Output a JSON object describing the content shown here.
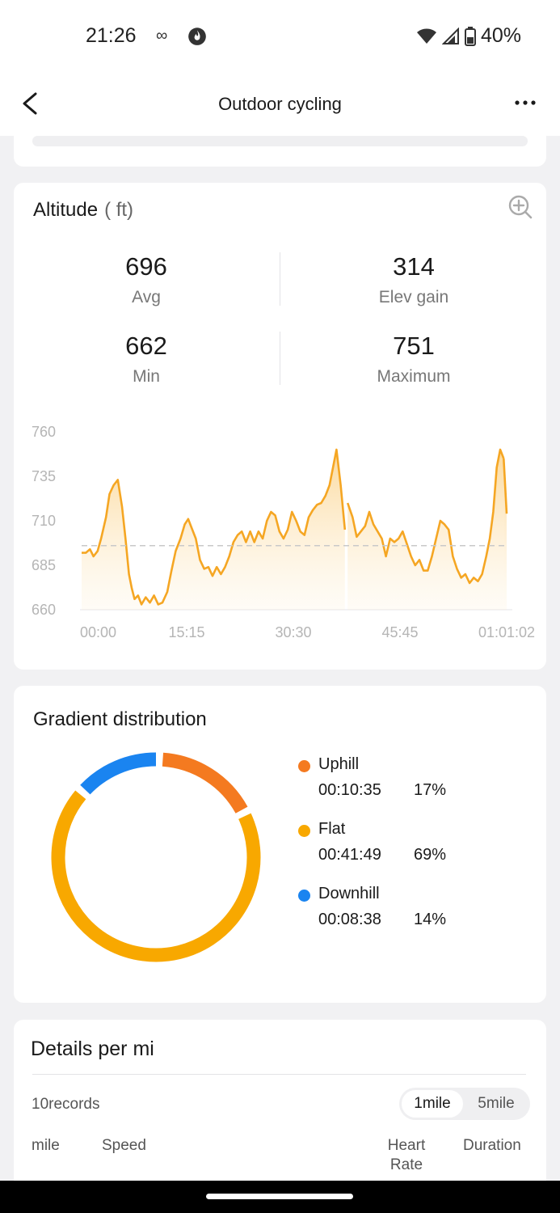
{
  "status_bar": {
    "time": "21:26",
    "battery": "40%"
  },
  "app_bar": {
    "title": "Outdoor cycling"
  },
  "altitude": {
    "title": "Altitude",
    "unit": "( ft)",
    "stats": [
      {
        "value": "696",
        "label": "Avg"
      },
      {
        "value": "314",
        "label": "Elev gain"
      },
      {
        "value": "662",
        "label": "Min"
      },
      {
        "value": "751",
        "label": "Maximum"
      }
    ]
  },
  "chart_data": {
    "type": "area",
    "y_ticks": [
      "760",
      "735",
      "710",
      "685",
      "660"
    ],
    "ylim": [
      660,
      760
    ],
    "x_ticks": [
      "00:00",
      "15:15",
      "30:30",
      "45:45",
      "01:01:02"
    ],
    "xlim_minutes": [
      0,
      61.03
    ],
    "average_line": 696,
    "color": "#f5a623",
    "segments": [
      {
        "x": [
          0,
          0.6,
          1.2,
          1.7,
          2.3,
          2.8,
          3.5,
          4.0,
          4.6,
          5.2,
          5.8,
          6.3,
          6.8,
          7.2,
          7.6,
          8.1,
          8.6,
          9.2,
          9.8,
          10.4,
          11.0,
          11.6,
          12.3,
          12.9,
          13.5,
          14.2,
          14.8,
          15.3,
          15.9,
          16.4,
          17.0,
          17.6,
          18.2,
          18.8,
          19.4,
          20.0,
          20.6,
          21.2,
          21.8,
          22.4,
          23.0,
          23.6,
          24.2,
          24.8,
          25.4,
          26.0,
          26.6,
          27.2,
          27.8,
          28.4,
          29.0,
          29.6,
          30.2,
          30.8,
          31.4,
          32.0,
          32.6,
          33.2,
          33.8,
          34.4,
          35.0,
          35.6,
          36.1,
          36.6,
          37.2,
          37.8
        ],
        "y": [
          692,
          692,
          694,
          690,
          693,
          700,
          712,
          725,
          730,
          733,
          718,
          700,
          680,
          672,
          666,
          668,
          663,
          667,
          664,
          668,
          663,
          664,
          670,
          682,
          693,
          700,
          708,
          711,
          705,
          700,
          688,
          683,
          684,
          679,
          684,
          680,
          684,
          690,
          698,
          702,
          704,
          698,
          704,
          698,
          704,
          700,
          710,
          715,
          713,
          704,
          700,
          705,
          715,
          710,
          704,
          702,
          712,
          716,
          719,
          720,
          724,
          730,
          740,
          750,
          730,
          705
        ]
      },
      {
        "x": [
          38.2,
          38.9,
          39.5,
          40.1,
          40.7,
          41.3,
          41.9,
          42.5,
          43.1,
          43.7,
          44.3,
          44.9,
          45.5,
          46.1,
          46.7,
          47.3,
          47.9,
          48.5,
          49.1,
          49.7,
          50.3,
          50.9,
          51.5,
          52.1,
          52.7,
          53.3,
          53.9,
          54.5,
          55.1,
          55.7,
          56.3,
          56.9,
          57.5,
          58.1,
          58.6,
          59.1,
          59.6,
          60.1,
          60.6
        ],
        "y": [
          720,
          712,
          701,
          704,
          707,
          715,
          708,
          704,
          700,
          690,
          700,
          698,
          700,
          704,
          697,
          690,
          685,
          688,
          682,
          682,
          690,
          700,
          710,
          708,
          705,
          690,
          683,
          678,
          680,
          675,
          678,
          676,
          680,
          690,
          700,
          715,
          740,
          750,
          745
        ]
      },
      {
        "x": [
          60.6,
          61.03
        ],
        "y": [
          745,
          714
        ]
      }
    ]
  },
  "gradient": {
    "title": "Gradient distribution",
    "items": [
      {
        "name": "Uphill",
        "time": "00:10:35",
        "percent": "17%",
        "value": 17,
        "color": "#f47a20"
      },
      {
        "name": "Flat",
        "time": "00:41:49",
        "percent": "69%",
        "value": 69,
        "color": "#f8a800"
      },
      {
        "name": "Downhill",
        "time": "00:08:38",
        "percent": "14%",
        "value": 14,
        "color": "#1a84f0"
      }
    ]
  },
  "details": {
    "title": "Details per mi",
    "records": "10records",
    "segment_options": [
      "1mile",
      "5mile"
    ],
    "columns": {
      "mile": "mile",
      "speed": "Speed",
      "heart_rate": "Heart Rate",
      "duration": "Duration"
    }
  }
}
